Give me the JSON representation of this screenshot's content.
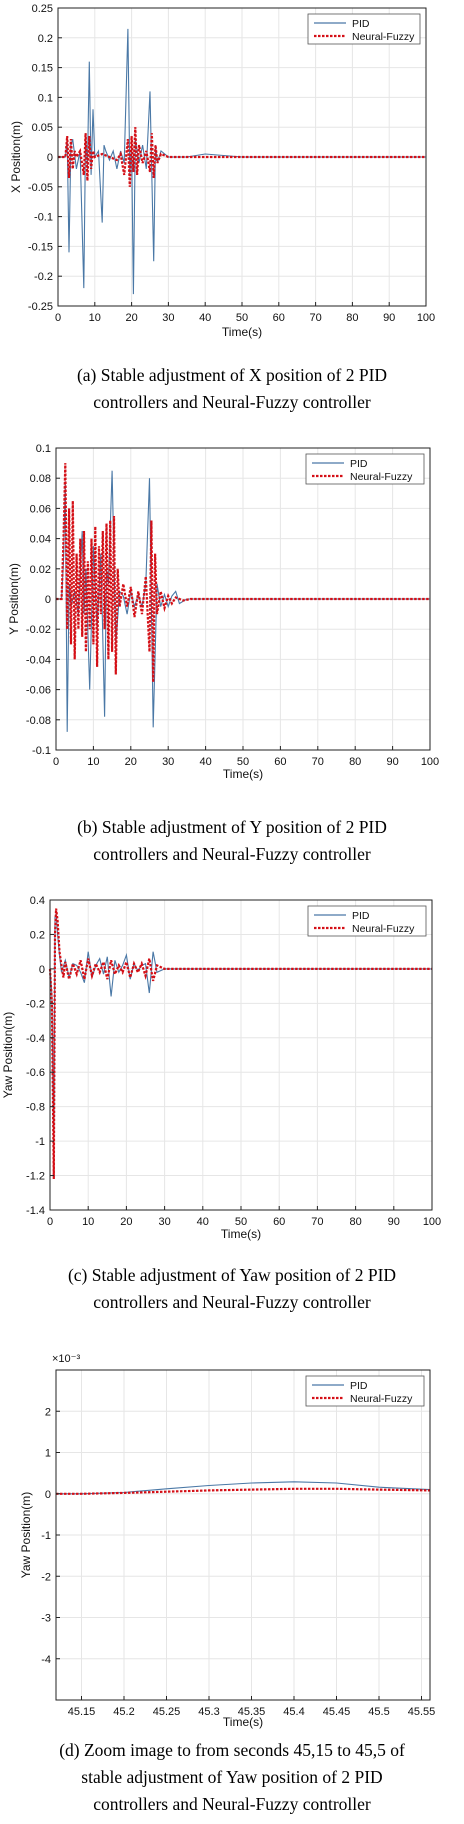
{
  "colors": {
    "pid": "#4a78a6",
    "nf": "#d40f16",
    "grid": "#e6e6e6",
    "axis": "#222222"
  },
  "legend": {
    "pid": "PID",
    "nf": "Neural-Fuzzy"
  },
  "captions": [
    {
      "line1": "(a) Stable adjustment of X position of 2 PID",
      "line2": "controllers and Neural-Fuzzy controller"
    },
    {
      "line1": "(b) Stable adjustment of Y position of 2 PID",
      "line2": "controllers and Neural-Fuzzy controller"
    },
    {
      "line1": "(c) Stable adjustment of Yaw position of 2 PID",
      "line2": "controllers and Neural-Fuzzy controller"
    },
    {
      "line1": "(d) Zoom image to from seconds 45,15 to 45,5 of",
      "line2": "stable adjustment of Yaw position of 2 PID",
      "line3": "controllers and Neural-Fuzzy controller"
    }
  ],
  "chart_data": [
    {
      "type": "line",
      "xlabel": "Time(s)",
      "ylabel": "X Position(m)",
      "xlim": [
        0,
        100
      ],
      "ylim": [
        -0.25,
        0.25
      ],
      "xticks": [
        0,
        10,
        20,
        30,
        40,
        50,
        60,
        70,
        80,
        90,
        100
      ],
      "yticks": [
        -0.25,
        -0.2,
        -0.15,
        -0.1,
        -0.05,
        0,
        0.05,
        0.1,
        0.15,
        0.2,
        0.25
      ],
      "xtick_labels": [
        "0",
        "10",
        "20",
        "30",
        "40",
        "50",
        "60",
        "70",
        "80",
        "90",
        "100"
      ],
      "ytick_labels": [
        "-0.25",
        "-0.2",
        "-0.15",
        "-0.1",
        "-0.05",
        "0",
        "0.05",
        "0.1",
        "0.15",
        "0.2",
        "0.25"
      ],
      "grid": true,
      "legend_position": "top-right",
      "series": [
        {
          "name": "PID",
          "x": [
            0,
            2,
            2.5,
            3,
            3.5,
            4,
            5,
            6,
            7,
            7.5,
            8,
            8.5,
            9,
            9.5,
            10,
            11,
            12,
            12.5,
            13,
            14,
            15,
            16,
            17,
            18,
            19,
            19.5,
            20,
            20.5,
            21,
            21.5,
            22,
            23,
            24,
            25,
            25.5,
            26,
            26.5,
            27,
            28,
            30,
            35,
            40,
            50,
            60,
            70,
            80,
            90,
            100
          ],
          "y": [
            0,
            0,
            0.03,
            -0.16,
            0.02,
            0.03,
            -0.02,
            0.01,
            -0.22,
            0.04,
            -0.02,
            0.16,
            -0.03,
            0.08,
            0,
            0.01,
            -0.11,
            0.02,
            0.01,
            -0.005,
            0.01,
            -0.02,
            0.01,
            -0.01,
            0.215,
            -0.03,
            0.02,
            -0.23,
            0.03,
            0.01,
            -0.01,
            0.02,
            -0.02,
            0.11,
            -0.03,
            -0.175,
            0.02,
            -0.01,
            0.01,
            0,
            0,
            0.005,
            0,
            0,
            0,
            0,
            0,
            0
          ]
        },
        {
          "name": "Neural-Fuzzy",
          "x": [
            0,
            2,
            2.5,
            3,
            3.5,
            4,
            4.5,
            5,
            6,
            7,
            7.5,
            8,
            8.5,
            9,
            9.5,
            10,
            12,
            14,
            16,
            17,
            18,
            19,
            19.5,
            20,
            20.5,
            21,
            21.5,
            22,
            23,
            24,
            25,
            25.5,
            26,
            26.5,
            27,
            28,
            30,
            35,
            40,
            60,
            80,
            100
          ],
          "y": [
            0,
            0,
            0.035,
            -0.035,
            0.03,
            -0.02,
            0.01,
            0,
            0.01,
            -0.03,
            0.04,
            -0.04,
            0.035,
            -0.02,
            0.01,
            0,
            0.005,
            0,
            -0.005,
            0.005,
            -0.03,
            0.03,
            -0.05,
            0.035,
            -0.025,
            0.05,
            -0.03,
            0.02,
            -0.01,
            0.01,
            -0.025,
            0.04,
            -0.035,
            0.02,
            -0.01,
            0.005,
            0,
            0,
            0,
            0,
            0,
            0
          ]
        }
      ]
    },
    {
      "type": "line",
      "xlabel": "Time(s)",
      "ylabel": "Y Position(m)",
      "xlim": [
        0,
        100
      ],
      "ylim": [
        -0.1,
        0.1
      ],
      "xticks": [
        0,
        10,
        20,
        30,
        40,
        50,
        60,
        70,
        80,
        90,
        100
      ],
      "yticks": [
        -0.1,
        -0.08,
        -0.06,
        -0.04,
        -0.02,
        0,
        0.02,
        0.04,
        0.06,
        0.08,
        0.1
      ],
      "xtick_labels": [
        "0",
        "10",
        "20",
        "30",
        "40",
        "50",
        "60",
        "70",
        "80",
        "90",
        "100"
      ],
      "ytick_labels": [
        "-0.1",
        "-0.08",
        "-0.06",
        "-0.04",
        "-0.02",
        "0",
        "0.02",
        "0.04",
        "0.06",
        "0.08",
        "0.1"
      ],
      "grid": true,
      "legend_position": "top-right",
      "series": [
        {
          "name": "PID",
          "x": [
            0,
            1.5,
            2,
            2.5,
            3,
            3.5,
            4,
            5,
            6,
            7,
            7.5,
            8,
            9,
            10,
            11,
            12,
            13,
            13.5,
            14,
            15,
            16,
            17,
            18,
            19,
            20,
            21,
            22,
            23,
            24,
            25,
            26,
            27,
            28,
            29,
            30,
            31,
            32,
            33,
            35,
            40,
            50,
            60,
            70,
            80,
            90,
            100
          ],
          "y": [
            0,
            0,
            0.025,
            0.078,
            -0.088,
            0.01,
            -0.005,
            0.005,
            -0.01,
            0.045,
            -0.01,
            0.02,
            -0.06,
            0.035,
            -0.02,
            0.03,
            -0.078,
            0.02,
            0.01,
            0.085,
            -0.03,
            0.005,
            0.002,
            -0.01,
            0.005,
            -0.005,
            0.003,
            -0.005,
            0.01,
            0.08,
            -0.085,
            0.01,
            -0.005,
            0.003,
            -0.005,
            0.002,
            0.005,
            -0.003,
            0,
            0,
            0,
            0,
            0,
            0,
            0,
            0
          ]
        },
        {
          "name": "Neural-Fuzzy",
          "x": [
            0,
            1.5,
            2,
            2.5,
            3,
            3.5,
            4,
            4.5,
            5,
            5.5,
            6,
            6.5,
            7,
            7.5,
            8,
            8.5,
            9,
            9.5,
            10,
            10.5,
            11,
            11.5,
            12,
            12.5,
            13,
            13.5,
            14,
            14.5,
            15,
            15.5,
            16,
            16.5,
            17,
            18,
            19,
            20,
            21,
            22,
            23,
            24,
            25,
            25.5,
            26,
            26.5,
            27,
            28,
            29,
            30,
            31,
            32,
            34,
            36,
            40,
            60,
            80,
            100
          ],
          "y": [
            0,
            0,
            0.04,
            0.09,
            -0.02,
            0.06,
            -0.03,
            0.065,
            -0.04,
            0.03,
            -0.02,
            0.04,
            -0.025,
            0.045,
            -0.035,
            0.025,
            -0.02,
            0.04,
            -0.03,
            0.048,
            -0.045,
            0.035,
            -0.01,
            0.045,
            -0.02,
            0.05,
            -0.04,
            0.052,
            -0.035,
            0.055,
            -0.05,
            0.02,
            -0.005,
            0.01,
            -0.005,
            0.008,
            -0.012,
            0.005,
            -0.01,
            0.015,
            -0.035,
            0.052,
            -0.055,
            0.03,
            -0.01,
            0.005,
            -0.006,
            0.002,
            -0.003,
            0.001,
            -0.001,
            0,
            0,
            0,
            0,
            0
          ]
        }
      ]
    },
    {
      "type": "line",
      "xlabel": "Time(s)",
      "ylabel": "Yaw Position(m)",
      "xlim": [
        0,
        100
      ],
      "ylim": [
        -1.4,
        0.4
      ],
      "xticks": [
        0,
        10,
        20,
        30,
        40,
        50,
        60,
        70,
        80,
        90,
        100
      ],
      "yticks": [
        -1.4,
        -1.2,
        -1,
        -0.8,
        -0.6,
        -0.4,
        -0.2,
        0,
        0.2,
        0.4
      ],
      "xtick_labels": [
        "0",
        "10",
        "20",
        "30",
        "40",
        "50",
        "60",
        "70",
        "80",
        "90",
        "100"
      ],
      "ytick_labels": [
        "-1.4",
        "-1.2",
        "-1",
        "-0.8",
        "-0.6",
        "-0.4",
        "-0.2",
        "0",
        "0.2",
        "0.4"
      ],
      "grid": true,
      "legend_position": "top-right",
      "series": [
        {
          "name": "PID",
          "x": [
            0,
            0.5,
            1,
            1.3,
            1.6,
            2,
            2.5,
            3,
            4,
            5,
            6,
            7,
            8,
            9,
            10,
            11,
            12,
            13,
            14,
            15,
            16,
            17,
            18,
            19,
            20,
            21,
            22,
            23,
            24,
            25,
            26,
            27,
            28,
            30,
            35,
            40,
            60,
            80,
            100
          ],
          "y": [
            0,
            -0.15,
            -1.12,
            0.3,
            0.32,
            0.2,
            0.08,
            -0.02,
            0.05,
            -0.05,
            0.03,
            0.02,
            -0.02,
            -0.08,
            0.1,
            -0.05,
            0.02,
            0.06,
            -0.03,
            0.07,
            -0.16,
            0.05,
            -0.02,
            0.02,
            0.08,
            -0.06,
            0.03,
            -0.01,
            0.02,
            0.03,
            -0.14,
            0.1,
            -0.02,
            0,
            0,
            0,
            0,
            0,
            0
          ]
        },
        {
          "name": "Neural-Fuzzy",
          "x": [
            0,
            0.5,
            1,
            1.3,
            1.6,
            2,
            2.5,
            3,
            3.5,
            4,
            5,
            6,
            7,
            8,
            9,
            10,
            11,
            12,
            13,
            14,
            15,
            16,
            17,
            18,
            19,
            20,
            21,
            22,
            23,
            24,
            25,
            26,
            27,
            28,
            30,
            35,
            40,
            60,
            80,
            100
          ],
          "y": [
            0,
            -0.2,
            -1.22,
            0.2,
            0.35,
            0.28,
            0.1,
            0.02,
            -0.05,
            0.04,
            -0.06,
            0.03,
            -0.03,
            0.05,
            -0.06,
            0.06,
            -0.04,
            0.03,
            -0.02,
            0.04,
            -0.06,
            0.05,
            -0.03,
            0.02,
            -0.02,
            0.04,
            -0.05,
            0.03,
            -0.02,
            0.03,
            -0.04,
            0.06,
            -0.07,
            0.02,
            0,
            0,
            0,
            0,
            0,
            0
          ]
        }
      ]
    },
    {
      "type": "line",
      "xlabel": "Time(s)",
      "ylabel": "Yaw Position(m)",
      "multiplier_label": "×10⁻³",
      "xlim": [
        45.12,
        45.56
      ],
      "ylim": [
        -5,
        3
      ],
      "xticks": [
        45.15,
        45.2,
        45.25,
        45.3,
        45.35,
        45.4,
        45.45,
        45.5,
        45.55
      ],
      "yticks": [
        -4,
        -3,
        -2,
        -1,
        0,
        1,
        2
      ],
      "xtick_labels": [
        "45.15",
        "45.2",
        "45.25",
        "45.3",
        "45.35",
        "45.4",
        "45.45",
        "45.5",
        "45.55"
      ],
      "ytick_labels": [
        "-4",
        "-3",
        "-2",
        "-1",
        "0",
        "1",
        "2"
      ],
      "grid": true,
      "legend_position": "top-right",
      "series": [
        {
          "name": "PID",
          "x": [
            45.12,
            45.15,
            45.2,
            45.25,
            45.3,
            45.35,
            45.4,
            45.45,
            45.5,
            45.56
          ],
          "y": [
            0.0,
            0.0,
            0.03,
            0.12,
            0.2,
            0.26,
            0.29,
            0.26,
            0.16,
            0.1
          ]
        },
        {
          "name": "Neural-Fuzzy",
          "x": [
            45.12,
            45.15,
            45.2,
            45.25,
            45.3,
            45.35,
            45.4,
            45.45,
            45.5,
            45.56
          ],
          "y": [
            0.0,
            0.0,
            0.02,
            0.05,
            0.08,
            0.1,
            0.12,
            0.12,
            0.1,
            0.08
          ]
        }
      ]
    }
  ]
}
